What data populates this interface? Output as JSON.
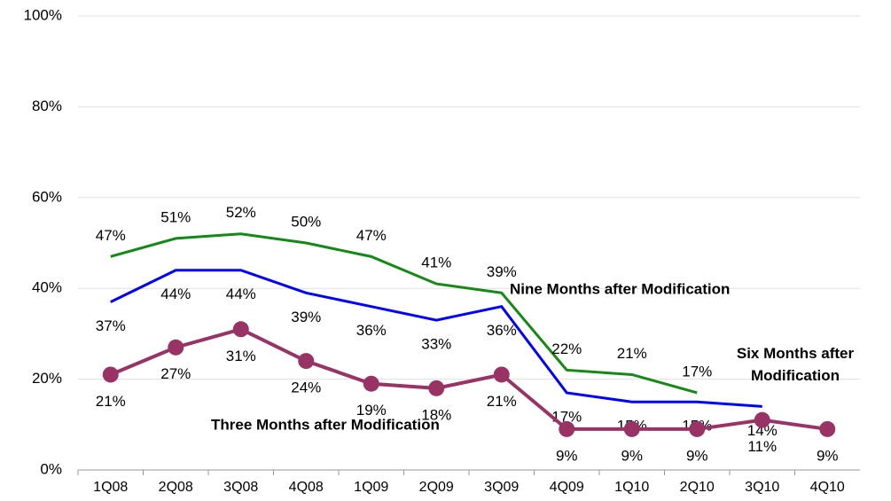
{
  "chart_data": {
    "type": "line",
    "categories": [
      "1Q08",
      "2Q08",
      "3Q08",
      "4Q08",
      "1Q09",
      "2Q09",
      "3Q09",
      "4Q09",
      "1Q10",
      "2Q10",
      "3Q10",
      "4Q10"
    ],
    "series": [
      {
        "name": "Nine Months after Modification",
        "color": "#138a13",
        "values": [
          47,
          51,
          52,
          50,
          47,
          41,
          39,
          22,
          21,
          17,
          null,
          null
        ],
        "value_labels": [
          "47%",
          "51%",
          "52%",
          "50%",
          "47%",
          "41%",
          "39%",
          "22%",
          "21%",
          "17%",
          null,
          null
        ]
      },
      {
        "name": "Six Months after Modification",
        "color": "#0000ff",
        "values": [
          37,
          44,
          44,
          39,
          36,
          33,
          36,
          17,
          15,
          15,
          14,
          null
        ],
        "value_labels": [
          "37%",
          "44%",
          "44%",
          "39%",
          "36%",
          "33%",
          "36%",
          "17%",
          "15%",
          "15%",
          "14%",
          null
        ]
      },
      {
        "name": "Three Months after Modification",
        "color": "#993366",
        "values": [
          21,
          27,
          31,
          24,
          19,
          18,
          21,
          9,
          9,
          9,
          11,
          9
        ],
        "value_labels": [
          "21%",
          "27%",
          "31%",
          "24%",
          "19%",
          "18%",
          "21%",
          "9%",
          "9%",
          "9%",
          "11%",
          "9%"
        ],
        "markers": true
      }
    ],
    "ylim": [
      0,
      100
    ],
    "yticks": [
      {
        "value": 0,
        "label": "0%"
      },
      {
        "value": 20,
        "label": "20%"
      },
      {
        "value": 40,
        "label": "40%"
      },
      {
        "value": 60,
        "label": "60%"
      },
      {
        "value": 80,
        "label": "80%"
      },
      {
        "value": 100,
        "label": "100%"
      }
    ],
    "grid": true
  }
}
